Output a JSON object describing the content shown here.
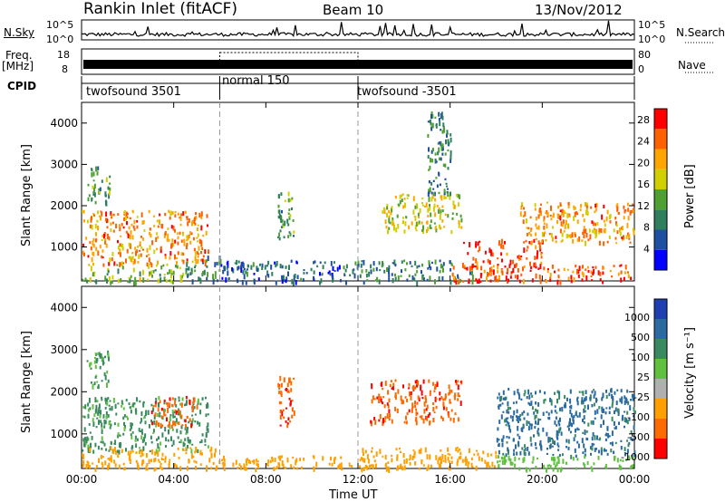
{
  "header": {
    "station": "Rankin Inlet (fitACF)",
    "beam": "Beam 10",
    "date": "13/Nov/2012"
  },
  "top_panels": {
    "nsky_label": "N.Sky",
    "nsky_ticks": [
      "10^5",
      "10^0"
    ],
    "nsearch_label": "N.Search",
    "nsearch_ticks": [
      "10^5",
      "10^0"
    ],
    "freq_label": "Freq.",
    "freq_unit": "[MHz]",
    "freq_ticks": [
      "18",
      "8"
    ],
    "nave_label": "Nave",
    "nave_ticks": [
      "80",
      "0"
    ],
    "cpid_label": "CPID",
    "modes": [
      {
        "label": "twofsound 3501",
        "start_h": 0,
        "end_h": 6
      },
      {
        "label": "normal 150",
        "start_h": 6,
        "end_h": 12
      },
      {
        "label": "twofsound -3501",
        "start_h": 12,
        "end_h": 24
      }
    ]
  },
  "chart_data": [
    {
      "type": "heatmap",
      "name": "power",
      "ylabel": "Slant Range [km]",
      "xlabel": "",
      "x_ticks": [
        "00:00",
        "04:00",
        "08:00",
        "12:00",
        "16:00",
        "20:00",
        "00:00"
      ],
      "x_range_h": [
        0,
        24
      ],
      "y_ticks": [
        1000,
        2000,
        3000,
        4000
      ],
      "ylim": [
        180,
        4500
      ],
      "colorbar": {
        "label": "Power [dB]",
        "ticks": [
          4,
          8,
          12,
          16,
          20,
          24,
          28
        ],
        "range": [
          0,
          30
        ],
        "colors": [
          "#0000ff",
          "#1f4fa0",
          "#2f7f5f",
          "#4fa030",
          "#d0d000",
          "#ffa500",
          "#ff6000",
          "#ff0000"
        ]
      },
      "regions": [
        {
          "x": [
            0,
            5.5
          ],
          "y": [
            600,
            1900
          ],
          "value": 22
        },
        {
          "x": [
            0,
            4.5
          ],
          "y": [
            180,
            600
          ],
          "value": 14
        },
        {
          "x": [
            4.5,
            6
          ],
          "y": [
            200,
            800
          ],
          "value": 10
        },
        {
          "x": [
            6,
            12
          ],
          "y": [
            180,
            700
          ],
          "value": 7
        },
        {
          "x": [
            8.5,
            9.2
          ],
          "y": [
            1200,
            2400
          ],
          "value": 12
        },
        {
          "x": [
            12,
            17
          ],
          "y": [
            180,
            700
          ],
          "value": 10
        },
        {
          "x": [
            13,
            16.5
          ],
          "y": [
            1400,
            2300
          ],
          "value": 17
        },
        {
          "x": [
            16.5,
            20
          ],
          "y": [
            500,
            1200
          ],
          "value": 26
        },
        {
          "x": [
            16,
            24
          ],
          "y": [
            180,
            600
          ],
          "value": 25
        },
        {
          "x": [
            19,
            24
          ],
          "y": [
            1100,
            2100
          ],
          "value": 22
        },
        {
          "x": [
            0.2,
            1.2
          ],
          "y": [
            2100,
            3000
          ],
          "value": 11
        },
        {
          "x": [
            15,
            16
          ],
          "y": [
            2300,
            4300
          ],
          "value": 9
        }
      ]
    },
    {
      "type": "heatmap",
      "name": "velocity",
      "ylabel": "Slant Range [km]",
      "xlabel": "Time UT",
      "x_ticks": [
        "00:00",
        "04:00",
        "08:00",
        "12:00",
        "16:00",
        "20:00",
        "00:00"
      ],
      "x_range_h": [
        0,
        24
      ],
      "y_ticks": [
        1000,
        2000,
        3000,
        4000
      ],
      "ylim": [
        180,
        4500
      ],
      "colorbar": {
        "label": "Velocity [m s⁻¹]",
        "ticks": [
          "1000",
          "500",
          "100",
          "25",
          "-25",
          "-100",
          "-500",
          "-1000"
        ],
        "colors": [
          "#1f3fb0",
          "#2a6aa0",
          "#3a8a60",
          "#60c040",
          "#b0b0b0",
          "#ffa000",
          "#ff6a00",
          "#ff0000"
        ]
      },
      "regions": [
        {
          "x": [
            0,
            5.5
          ],
          "y": [
            600,
            1900
          ],
          "value": 100
        },
        {
          "x": [
            3,
            5
          ],
          "y": [
            1200,
            1900
          ],
          "value": -500
        },
        {
          "x": [
            0,
            6
          ],
          "y": [
            180,
            700
          ],
          "value": -100
        },
        {
          "x": [
            6,
            12
          ],
          "y": [
            180,
            500
          ],
          "value": -100
        },
        {
          "x": [
            8.5,
            9.2
          ],
          "y": [
            1200,
            2400
          ],
          "value": -500
        },
        {
          "x": [
            12.5,
            16.5
          ],
          "y": [
            1300,
            2300
          ],
          "value": -500
        },
        {
          "x": [
            12,
            18
          ],
          "y": [
            180,
            700
          ],
          "value": -100
        },
        {
          "x": [
            18,
            24
          ],
          "y": [
            500,
            2100
          ],
          "value": 500
        },
        {
          "x": [
            18,
            24
          ],
          "y": [
            180,
            500
          ],
          "value": 25
        },
        {
          "x": [
            0.2,
            1.2
          ],
          "y": [
            2100,
            3000
          ],
          "value": 100
        }
      ]
    }
  ]
}
